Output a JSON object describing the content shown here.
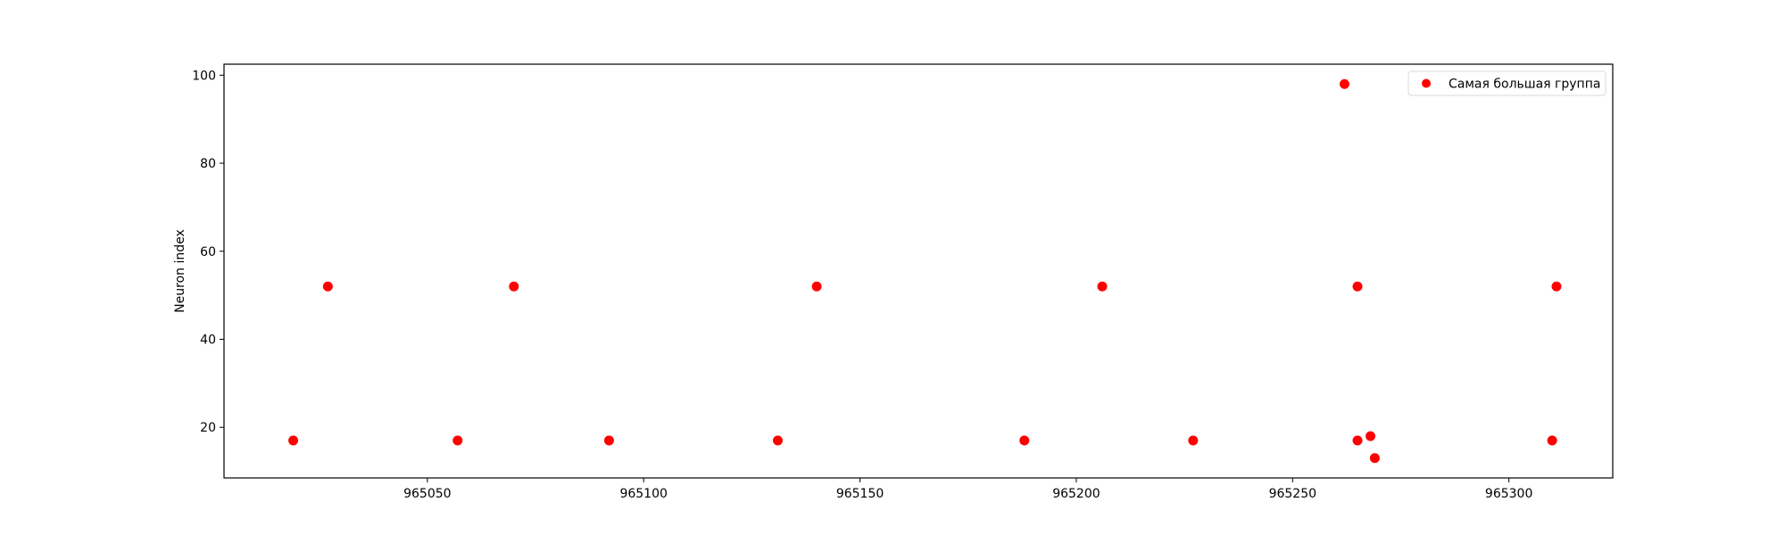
{
  "chart_data": {
    "type": "scatter",
    "title": "",
    "xlabel": "",
    "ylabel": "Neuron index",
    "xlim": [
      965003,
      965324
    ],
    "ylim": [
      8.5,
      102.5
    ],
    "x_ticks": [
      965050,
      965100,
      965150,
      965200,
      965250,
      965300
    ],
    "x_tick_labels": [
      "965050",
      "965100",
      "965150",
      "965200",
      "965250",
      "965300"
    ],
    "y_ticks": [
      20,
      40,
      60,
      80,
      100
    ],
    "y_tick_labels": [
      "20",
      "40",
      "60",
      "80",
      "100"
    ],
    "grid": false,
    "legend_position": "top-right",
    "series": [
      {
        "name": "Самая большая группа",
        "color": "#ff0000",
        "points": [
          {
            "x": 965019,
            "y": 17
          },
          {
            "x": 965027,
            "y": 52
          },
          {
            "x": 965057,
            "y": 17
          },
          {
            "x": 965070,
            "y": 52
          },
          {
            "x": 965092,
            "y": 17
          },
          {
            "x": 965131,
            "y": 17
          },
          {
            "x": 965140,
            "y": 52
          },
          {
            "x": 965188,
            "y": 17
          },
          {
            "x": 965206,
            "y": 52
          },
          {
            "x": 965227,
            "y": 17
          },
          {
            "x": 965262,
            "y": 98
          },
          {
            "x": 965265,
            "y": 52
          },
          {
            "x": 965265,
            "y": 17
          },
          {
            "x": 965268,
            "y": 18
          },
          {
            "x": 965269,
            "y": 13
          },
          {
            "x": 965310,
            "y": 17
          },
          {
            "x": 965311,
            "y": 52
          }
        ]
      }
    ]
  }
}
